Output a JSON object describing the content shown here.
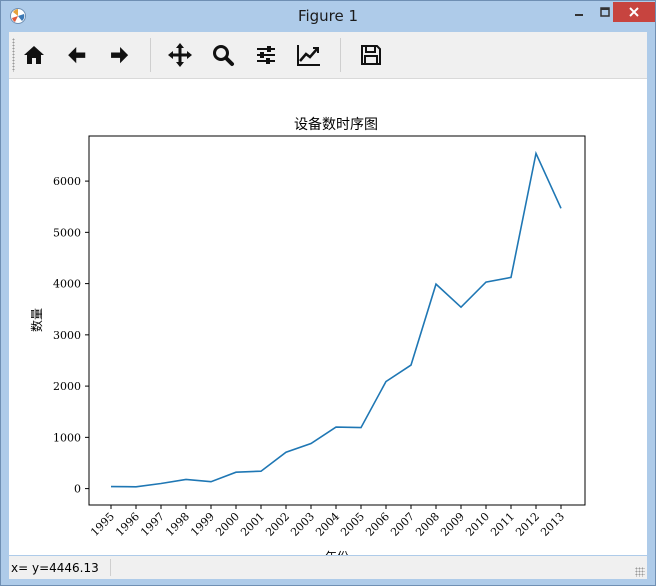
{
  "window": {
    "title": "Figure 1"
  },
  "toolbar": {
    "buttons": [
      "home-icon",
      "back-arrow-icon",
      "forward-arrow-icon",
      "pan-move-icon",
      "zoom-magnifier-icon",
      "configure-subplots-icon",
      "edit-axis-icon",
      "save-floppy-icon"
    ]
  },
  "status": {
    "coords": "x= y=4446.13"
  },
  "chart_data": {
    "type": "line",
    "title": "设备数时序图",
    "xlabel": "年份",
    "ylabel": "数量",
    "x": [
      "1995",
      "1996",
      "1997",
      "1998",
      "1999",
      "2000",
      "2001",
      "2002",
      "2003",
      "2004",
      "2005",
      "2006",
      "2007",
      "2008",
      "2009",
      "2010",
      "2011",
      "2012",
      "2013"
    ],
    "values": [
      40,
      35,
      100,
      180,
      135,
      320,
      340,
      710,
      880,
      1200,
      1190,
      2090,
      2410,
      3990,
      3540,
      4030,
      4120,
      6540,
      5470
    ],
    "yticks": [
      "0",
      "1000",
      "2000",
      "3000",
      "4000",
      "5000",
      "6000"
    ],
    "ylim": [
      -320,
      6880
    ],
    "grid": false,
    "color": "#1f77b4"
  }
}
